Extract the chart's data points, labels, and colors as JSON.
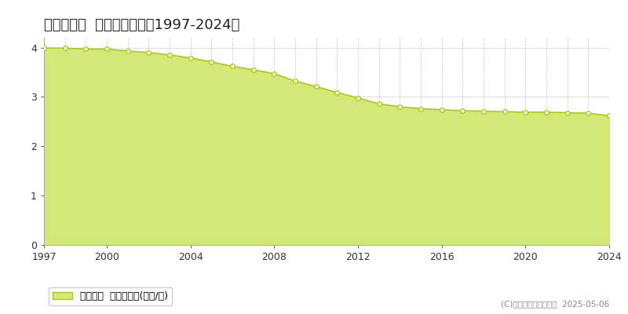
{
  "title": "中富良野町  基準地価推移［1997-2024］",
  "years": [
    1997,
    1998,
    1999,
    2000,
    2001,
    2002,
    2003,
    2004,
    2005,
    2006,
    2007,
    2008,
    2009,
    2010,
    2011,
    2012,
    2013,
    2014,
    2015,
    2016,
    2017,
    2018,
    2019,
    2020,
    2021,
    2022,
    2023,
    2024
  ],
  "values": [
    3.99,
    3.99,
    3.97,
    3.97,
    3.93,
    3.9,
    3.85,
    3.79,
    3.71,
    3.62,
    3.55,
    3.47,
    3.32,
    3.21,
    3.09,
    2.98,
    2.86,
    2.8,
    2.76,
    2.74,
    2.72,
    2.71,
    2.7,
    2.69,
    2.69,
    2.68,
    2.67,
    2.62
  ],
  "line_color": "#aacc00",
  "fill_color": "#d4e87a",
  "marker_face": "#ffffff",
  "marker_edge": "#aacc00",
  "grid_color": "#aaaaaa",
  "background_color": "#ffffff",
  "xlim": [
    1997,
    2024
  ],
  "ylim": [
    0,
    4.2
  ],
  "yticks": [
    0,
    1,
    2,
    3,
    4
  ],
  "xticks": [
    1997,
    2000,
    2004,
    2008,
    2012,
    2016,
    2020,
    2024
  ],
  "legend_label": "基準地価  平均坪単価(万円/坪)",
  "copyright_text": "(C)土地価格ドットコム  2025-05-06",
  "title_fontsize": 13,
  "axis_fontsize": 9,
  "legend_fontsize": 9
}
